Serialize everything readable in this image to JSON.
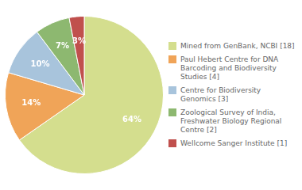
{
  "chart_data": {
    "type": "pie",
    "categories": [
      "Mined from GenBank, NCBI [18]",
      "Paul Hebert Centre for DNA\nBarcoding and Biodiversity\nStudies [4]",
      "Centre for Biodiversity\nGenomics [3]",
      "Zoological Survey of India,\nFreshwater Biology Regional\nCentre [2]",
      "Wellcome Sanger Institute [1]"
    ],
    "values": [
      64,
      14,
      10,
      7,
      3
    ],
    "value_labels": [
      "64%",
      "14%",
      "10%",
      "7%",
      "3%"
    ],
    "colors": [
      "#d4de8e",
      "#f0a458",
      "#a8c4dc",
      "#8db870",
      "#c0504d"
    ],
    "data_labels": true,
    "legend": "right"
  }
}
